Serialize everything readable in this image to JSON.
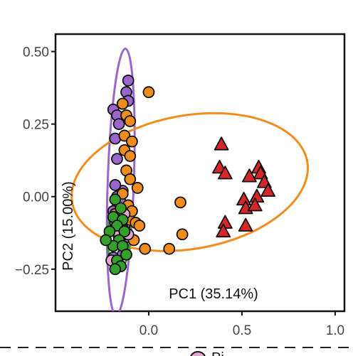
{
  "chart_data": {
    "type": "scatter",
    "title": "",
    "xlabel": "PC1 (35.14%)",
    "ylabel": "PC2 (15.00%)",
    "xlim": [
      -0.5,
      1.05
    ],
    "ylim": [
      -0.395,
      0.56
    ],
    "x_ticks": [
      "0.0",
      "0.5",
      "1.0"
    ],
    "y_ticks": [
      "0.50",
      "0.25",
      "0.00",
      "−0.25"
    ],
    "grid": false,
    "legend_partial_label": "Pi",
    "colors": {
      "purple": "#9966CC",
      "orange": "#F28C1E",
      "green": "#33A02C",
      "pink": "#E6A8D0",
      "red": "#D62728",
      "ellipse_purple": "#9966CC",
      "ellipse_orange": "#F28C1E",
      "ellipse_green": "#33A02C"
    },
    "ellipses": [
      {
        "name": "purple",
        "cx": -0.15,
        "cy": 0.05,
        "rx": 0.07,
        "ry": 0.46,
        "angle": 92
      },
      {
        "name": "orange",
        "cx": 0.22,
        "cy": 0.05,
        "rx": 0.64,
        "ry": 0.23,
        "angle": -10
      },
      {
        "name": "green",
        "cx": -0.16,
        "cy": -0.13,
        "rx": 0.06,
        "ry": 0.13,
        "angle": 92
      }
    ],
    "series": [
      {
        "color": "purple",
        "marker": "circle",
        "points": [
          [
            -0.11,
            0.4
          ],
          [
            -0.12,
            0.36
          ],
          [
            -0.11,
            0.33
          ],
          [
            -0.14,
            0.32
          ],
          [
            -0.19,
            0.3
          ],
          [
            -0.17,
            0.28
          ],
          [
            -0.16,
            0.25
          ],
          [
            -0.18,
            0.2
          ],
          [
            -0.17,
            0.13
          ],
          [
            -0.14,
            0.02
          ],
          [
            -0.18,
            0.04
          ],
          [
            -0.17,
            0.0
          ],
          [
            -0.15,
            -0.02
          ],
          [
            -0.19,
            -0.05
          ],
          [
            -0.18,
            -0.09
          ],
          [
            -0.13,
            -0.1
          ],
          [
            -0.12,
            -0.14
          ],
          [
            -0.16,
            -0.14
          ],
          [
            -0.19,
            -0.21
          ],
          [
            -0.14,
            -0.2
          ]
        ]
      },
      {
        "color": "orange",
        "marker": "circle",
        "points": [
          [
            0.0,
            0.36
          ],
          [
            -0.14,
            0.32
          ],
          [
            -0.12,
            0.28
          ],
          [
            -0.1,
            0.26
          ],
          [
            -0.13,
            0.21
          ],
          [
            -0.09,
            0.19
          ],
          [
            -0.13,
            0.16
          ],
          [
            -0.1,
            0.14
          ],
          [
            -0.12,
            0.09
          ],
          [
            -0.1,
            0.06
          ],
          [
            -0.06,
            0.03
          ],
          [
            -0.14,
            0.01
          ],
          [
            -0.11,
            -0.03
          ],
          [
            -0.18,
            -0.06
          ],
          [
            -0.1,
            -0.08
          ],
          [
            -0.07,
            -0.09
          ],
          [
            -0.05,
            -0.1
          ],
          [
            -0.13,
            -0.13
          ],
          [
            -0.08,
            -0.15
          ],
          [
            -0.02,
            -0.18
          ],
          [
            0.17,
            -0.02
          ],
          [
            0.18,
            -0.13
          ],
          [
            0.11,
            -0.18
          ],
          [
            -0.14,
            -0.11
          ],
          [
            -0.09,
            -0.05
          ]
        ]
      },
      {
        "color": "green",
        "marker": "circle",
        "points": [
          [
            -0.18,
            -0.01
          ],
          [
            -0.15,
            -0.04
          ],
          [
            -0.19,
            -0.07
          ],
          [
            -0.14,
            -0.08
          ],
          [
            -0.17,
            -0.1
          ],
          [
            -0.21,
            -0.12
          ],
          [
            -0.13,
            -0.12
          ],
          [
            -0.16,
            -0.15
          ],
          [
            -0.19,
            -0.17
          ],
          [
            -0.23,
            -0.15
          ],
          [
            -0.14,
            -0.17
          ],
          [
            -0.12,
            -0.2
          ],
          [
            -0.17,
            -0.22
          ],
          [
            -0.15,
            -0.24
          ],
          [
            -0.18,
            -0.25
          ]
        ]
      },
      {
        "color": "pink",
        "marker": "circle",
        "points": [
          [
            -0.13,
            -0.06
          ],
          [
            -0.15,
            -0.11
          ],
          [
            -0.17,
            -0.12
          ],
          [
            -0.11,
            -0.13
          ],
          [
            -0.2,
            -0.22
          ]
        ]
      },
      {
        "color": "red",
        "marker": "triangle",
        "points": [
          [
            0.39,
            0.18
          ],
          [
            0.38,
            0.1
          ],
          [
            0.41,
            0.08
          ],
          [
            0.59,
            0.1
          ],
          [
            0.6,
            0.08
          ],
          [
            0.54,
            0.07
          ],
          [
            0.62,
            0.05
          ],
          [
            0.64,
            0.02
          ],
          [
            0.58,
            0.0
          ],
          [
            0.51,
            -0.01
          ],
          [
            0.52,
            -0.04
          ],
          [
            0.57,
            -0.03
          ],
          [
            0.41,
            -0.09
          ],
          [
            0.4,
            -0.12
          ],
          [
            0.52,
            -0.1
          ]
        ]
      }
    ]
  }
}
